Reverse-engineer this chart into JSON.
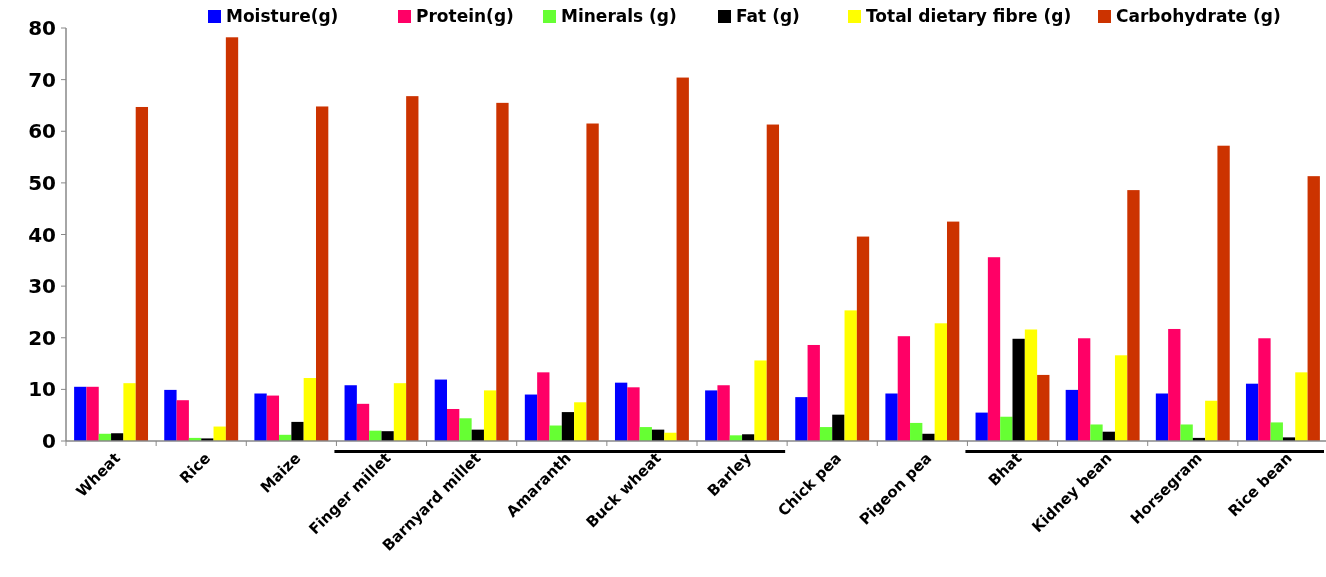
{
  "chart_data": {
    "type": "bar",
    "categories": [
      "Wheat",
      "Rice",
      "Maize",
      "Finger millet",
      "Barnyard millet",
      "Amaranth",
      "Buck wheat",
      "Barley",
      "Chick pea",
      "Pigeon pea",
      "Bhat",
      "Kidney bean",
      "Horsegram",
      "Rice bean"
    ],
    "series": [
      {
        "name": "Moisture(g)",
        "color": "#0000ff",
        "values": [
          10.5,
          9.9,
          9.2,
          10.8,
          11.9,
          9.0,
          11.3,
          9.8,
          8.5,
          9.2,
          5.5,
          9.9,
          9.2,
          11.1
        ]
      },
      {
        "name": "Protein(g)",
        "color": "#ff0066",
        "values": [
          10.5,
          7.9,
          8.8,
          7.2,
          6.2,
          13.3,
          10.4,
          10.8,
          18.6,
          20.3,
          35.6,
          19.9,
          21.7,
          19.9
        ]
      },
      {
        "name": "Minerals (g)",
        "color": "#66ff33",
        "values": [
          1.4,
          0.6,
          1.2,
          2.0,
          4.4,
          3.0,
          2.7,
          1.1,
          2.7,
          3.5,
          4.7,
          3.2,
          3.2,
          3.6
        ]
      },
      {
        "name": "Fat (g)",
        "color": "#000000",
        "values": [
          1.5,
          0.5,
          3.7,
          1.9,
          2.2,
          5.6,
          2.2,
          1.3,
          5.1,
          1.4,
          19.8,
          1.8,
          0.6,
          0.7
        ]
      },
      {
        "name": "Total dietary fibre (g)",
        "color": "#ffff00",
        "values": [
          11.2,
          2.8,
          12.2,
          11.2,
          9.8,
          7.5,
          1.6,
          15.6,
          25.3,
          22.8,
          21.6,
          16.6,
          7.8,
          13.3
        ]
      },
      {
        "name": "Carbohydrate (g)",
        "color": "#cc3300",
        "values": [
          64.7,
          78.2,
          64.8,
          66.8,
          65.5,
          61.5,
          70.4,
          61.3,
          39.6,
          42.5,
          12.8,
          48.6,
          57.2,
          51.3
        ]
      }
    ],
    "ylim": [
      0,
      80
    ],
    "yticks": [
      0,
      10,
      20,
      30,
      40,
      50,
      60,
      70,
      80
    ],
    "legend": "top"
  }
}
